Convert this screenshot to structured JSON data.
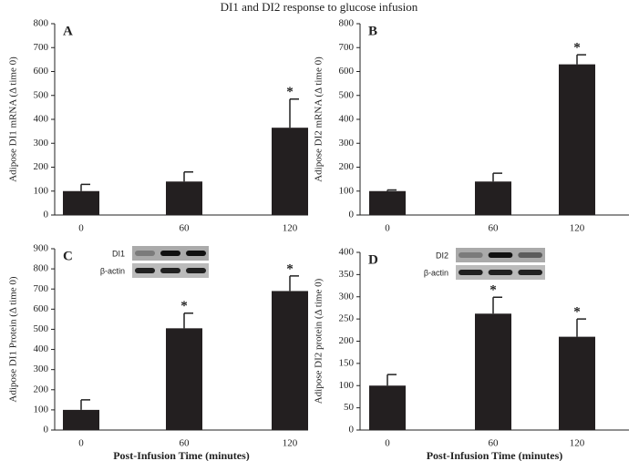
{
  "title": "DI1 and DI2 response to glucose infusion",
  "chart_data": [
    {
      "type": "bar",
      "label": "A",
      "ylabel": "Adipose DI1 mRNA (Δ time 0)",
      "categories": [
        "0",
        "60",
        "120"
      ],
      "values": [
        100,
        140,
        365
      ],
      "errors": [
        28,
        40,
        120
      ],
      "significance": [
        null,
        null,
        "*"
      ],
      "color": "#231f20",
      "ylim": [
        0,
        800
      ],
      "yticks": [
        0,
        100,
        200,
        300,
        400,
        500,
        600,
        700,
        800
      ]
    },
    {
      "type": "bar",
      "label": "B",
      "ylabel": "Adipose DI2  mRNA (Δ time 0)",
      "categories": [
        "0",
        "60",
        "120"
      ],
      "values": [
        100,
        140,
        630
      ],
      "errors": [
        5,
        35,
        40
      ],
      "significance": [
        null,
        null,
        "*"
      ],
      "color": "#231f20",
      "ylim": [
        0,
        800
      ],
      "yticks": [
        0,
        100,
        200,
        300,
        400,
        500,
        600,
        700,
        800
      ]
    },
    {
      "type": "bar",
      "label": "C",
      "ylabel": "Adipose DI1 Protein (Δ time 0)",
      "xlabel": "Post-Infusion Time (minutes)",
      "categories": [
        "0",
        "60",
        "120"
      ],
      "values": [
        100,
        505,
        690
      ],
      "errors": [
        50,
        75,
        75
      ],
      "significance": [
        null,
        "*",
        "*"
      ],
      "color": "#231f20",
      "ylim": [
        0,
        900
      ],
      "yticks": [
        0,
        100,
        200,
        300,
        400,
        500,
        600,
        700,
        800,
        900
      ],
      "blot_labels": [
        "DI1",
        "β-actin"
      ]
    },
    {
      "type": "bar",
      "label": "D",
      "ylabel": "Adipose DI2 protein (Δ time 0)",
      "xlabel": "Post-Infusion Time (minutes)",
      "categories": [
        "0",
        "60",
        "120"
      ],
      "values": [
        100,
        262,
        210
      ],
      "errors": [
        25,
        37,
        40
      ],
      "significance": [
        null,
        "*",
        "*"
      ],
      "color": "#231f20",
      "ylim": [
        0,
        400
      ],
      "yticks": [
        0,
        50,
        100,
        150,
        200,
        250,
        300,
        350,
        400
      ],
      "blot_labels": [
        "DI2",
        "β-actin"
      ]
    }
  ]
}
